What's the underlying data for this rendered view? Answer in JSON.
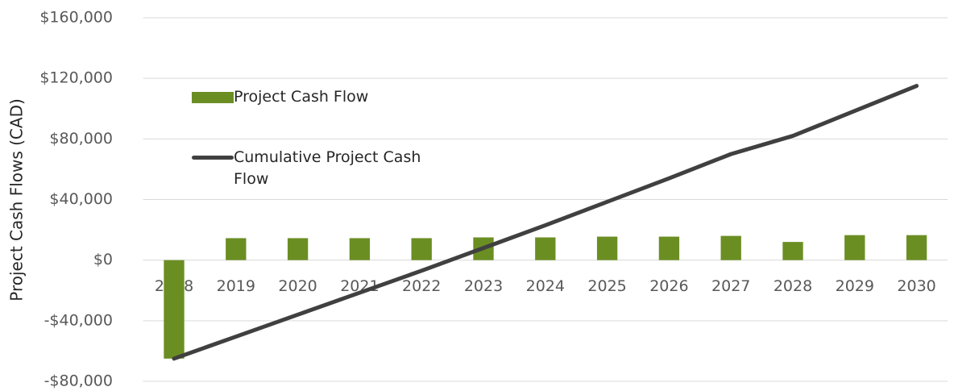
{
  "chart_data": {
    "type": "bar-line",
    "y_label": "Project Cash Flows (CAD)",
    "categories": [
      "2018",
      "2019",
      "2020",
      "2021",
      "2022",
      "2023",
      "2024",
      "2025",
      "2026",
      "2027",
      "2028",
      "2029",
      "2030"
    ],
    "series": [
      {
        "name": "Project Cash Flow",
        "type": "bar",
        "color": "#6b8e23",
        "values": [
          -65000,
          14500,
          14500,
          14500,
          14500,
          15000,
          15000,
          15500,
          15500,
          16000,
          12000,
          16500,
          16500
        ]
      },
      {
        "name": "Cumulative Project Cash Flow",
        "type": "line",
        "color": "#404040",
        "values": [
          -65000,
          -50500,
          -36000,
          -21500,
          -7000,
          8000,
          23000,
          38500,
          54000,
          70000,
          82000,
          98500,
          115000
        ]
      }
    ],
    "ylim": [
      -80000,
      160000
    ],
    "yticks": [
      {
        "value": -80000,
        "label": "-$80,000"
      },
      {
        "value": -40000,
        "label": "-$40,000"
      },
      {
        "value": 0,
        "label": "$0"
      },
      {
        "value": 40000,
        "label": "$40,000"
      },
      {
        "value": 80000,
        "label": "$80,000"
      },
      {
        "value": 120000,
        "label": "$120,000"
      },
      {
        "value": 160000,
        "label": "$160,000"
      }
    ],
    "grid": true,
    "legend": "upper-left"
  }
}
